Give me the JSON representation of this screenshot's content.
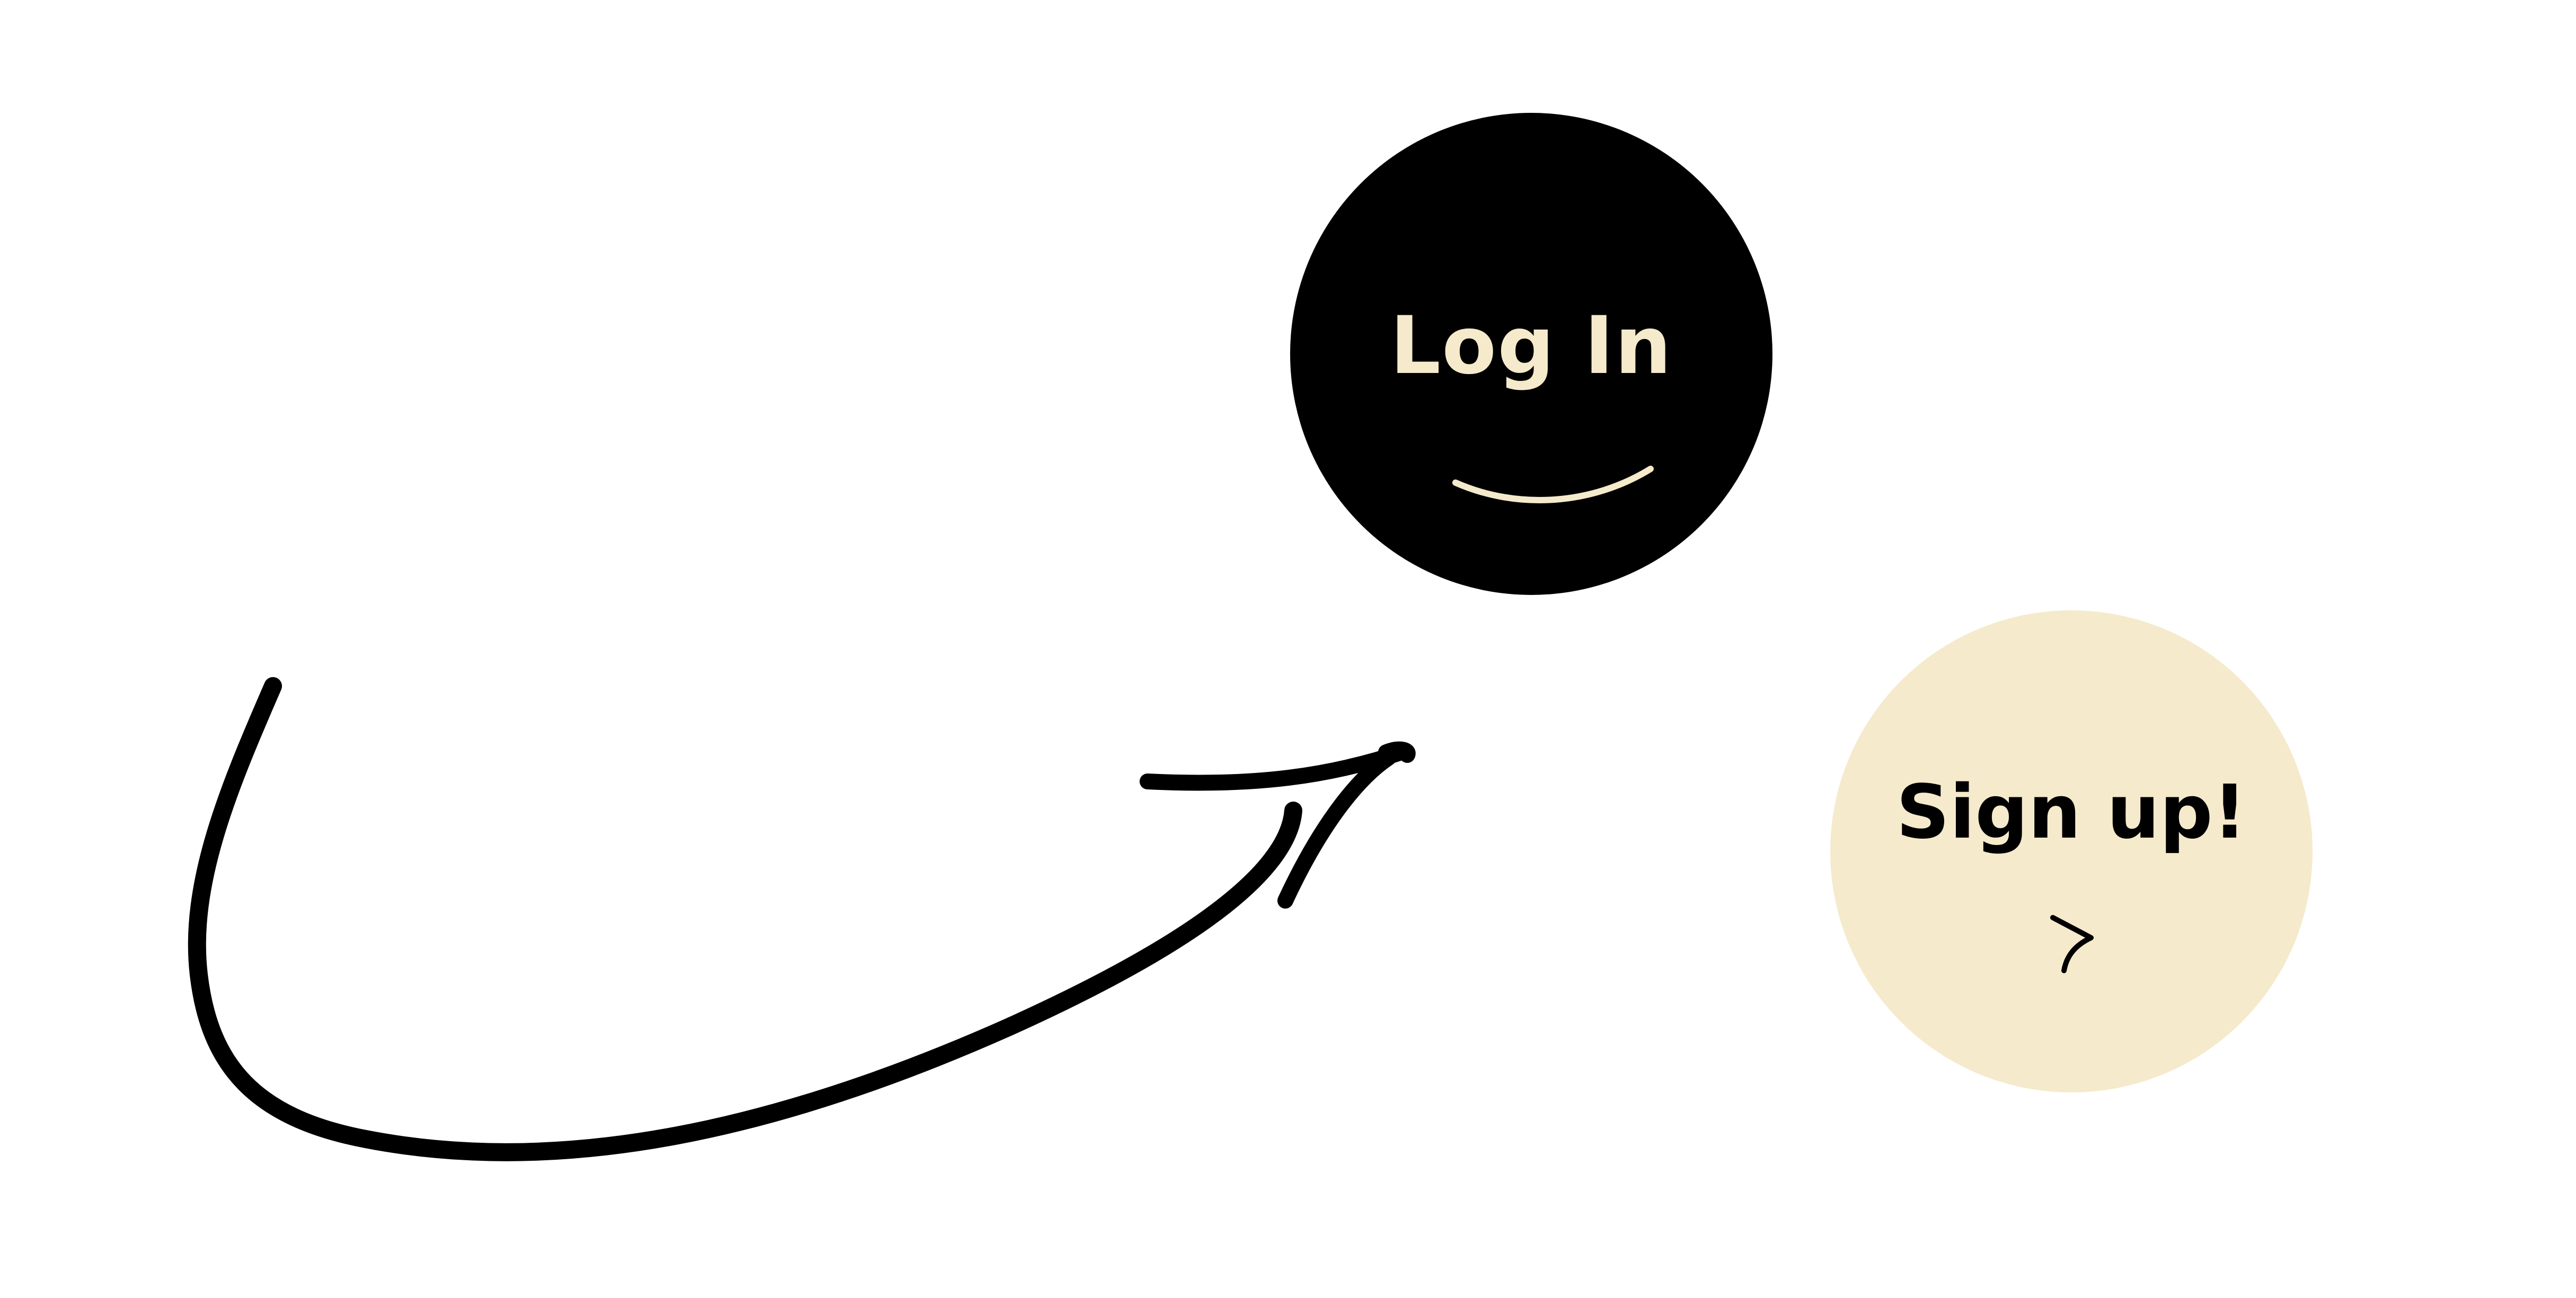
{
  "login": {
    "label": "Log In"
  },
  "signup": {
    "label": "Sign up!"
  },
  "icons": {
    "arrow": "curved-arrow-icon",
    "login_smile": "smile-icon",
    "signup_cursor": "cursor-arrow-icon"
  },
  "colors": {
    "background": "#ffffff",
    "login_fill": "#000000",
    "login_text": "#f5eacb",
    "signup_fill": "#f5eacb",
    "signup_text": "#000000",
    "arrow_stroke": "#000000"
  }
}
